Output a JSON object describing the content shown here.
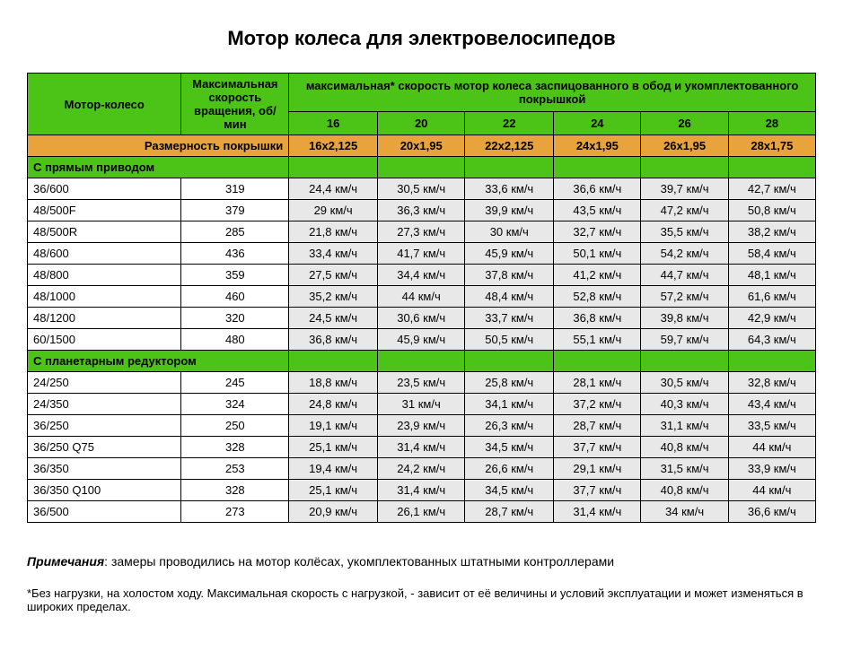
{
  "title": "Мотор колеса для электровелосипедов",
  "header": {
    "motor": "Мотор-колесо",
    "rpm": "Максимальная скорость вращения, об/мин",
    "speed_title": "максимальная* скорость мотор колеса заспицованного в обод и укомплектованного покрышкой",
    "wheel_sizes": [
      "16",
      "20",
      "22",
      "24",
      "26",
      "28"
    ],
    "tire_label": "Размерность покрышки",
    "tire_sizes": [
      "16x2,125",
      "20x1,95",
      "22x2,125",
      "24x1,95",
      "26x1,95",
      "28x1,75"
    ]
  },
  "colors": {
    "green": "#4cc417",
    "orange": "#e8a33d",
    "grey": "#e8e8e8"
  },
  "sections": [
    {
      "name": "С прямым приводом",
      "rows": [
        {
          "model": "36/600",
          "rpm": "319",
          "speeds": [
            "24,4 км/ч",
            "30,5 км/ч",
            "33,6 км/ч",
            "36,6 км/ч",
            "39,7 км/ч",
            "42,7 км/ч"
          ]
        },
        {
          "model": "48/500F",
          "rpm": "379",
          "speeds": [
            "29 км/ч",
            "36,3 км/ч",
            "39,9 км/ч",
            "43,5 км/ч",
            "47,2 км/ч",
            "50,8 км/ч"
          ]
        },
        {
          "model": "48/500R",
          "rpm": "285",
          "speeds": [
            "21,8 км/ч",
            "27,3 км/ч",
            "30 км/ч",
            "32,7 км/ч",
            "35,5 км/ч",
            "38,2 км/ч"
          ]
        },
        {
          "model": "48/600",
          "rpm": "436",
          "speeds": [
            "33,4 км/ч",
            "41,7 км/ч",
            "45,9 км/ч",
            "50,1 км/ч",
            "54,2 км/ч",
            "58,4 км/ч"
          ]
        },
        {
          "model": "48/800",
          "rpm": "359",
          "speeds": [
            "27,5 км/ч",
            "34,4 км/ч",
            "37,8 км/ч",
            "41,2 км/ч",
            "44,7 км/ч",
            "48,1 км/ч"
          ]
        },
        {
          "model": "48/1000",
          "rpm": "460",
          "speeds": [
            "35,2 км/ч",
            "44 км/ч",
            "48,4 км/ч",
            "52,8 км/ч",
            "57,2 км/ч",
            "61,6 км/ч"
          ]
        },
        {
          "model": "48/1200",
          "rpm": "320",
          "speeds": [
            "24,5 км/ч",
            "30,6 км/ч",
            "33,7 км/ч",
            "36,8 км/ч",
            "39,8 км/ч",
            "42,9 км/ч"
          ]
        },
        {
          "model": "60/1500",
          "rpm": "480",
          "speeds": [
            "36,8 км/ч",
            "45,9 км/ч",
            "50,5 км/ч",
            "55,1 км/ч",
            "59,7 км/ч",
            "64,3 км/ч"
          ]
        }
      ]
    },
    {
      "name": "С планетарным редуктором",
      "rows": [
        {
          "model": "24/250",
          "rpm": "245",
          "speeds": [
            "18,8 км/ч",
            "23,5 км/ч",
            "25,8 км/ч",
            "28,1 км/ч",
            "30,5 км/ч",
            "32,8 км/ч"
          ]
        },
        {
          "model": "24/350",
          "rpm": "324",
          "speeds": [
            "24,8 км/ч",
            "31 км/ч",
            "34,1 км/ч",
            "37,2 км/ч",
            "40,3 км/ч",
            "43,4 км/ч"
          ]
        },
        {
          "model": "36/250",
          "rpm": "250",
          "speeds": [
            "19,1 км/ч",
            "23,9 км/ч",
            "26,3 км/ч",
            "28,7 км/ч",
            "31,1 км/ч",
            "33,5 км/ч"
          ]
        },
        {
          "model": "36/250 Q75",
          "rpm": "328",
          "speeds": [
            "25,1 км/ч",
            "31,4 км/ч",
            "34,5 км/ч",
            "37,7 км/ч",
            "40,8 км/ч",
            "44 км/ч"
          ]
        },
        {
          "model": "36/350",
          "rpm": "253",
          "speeds": [
            "19,4 км/ч",
            "24,2 км/ч",
            "26,6 км/ч",
            "29,1 км/ч",
            "31,5 км/ч",
            "33,9 км/ч"
          ]
        },
        {
          "model": "36/350 Q100",
          "rpm": "328",
          "speeds": [
            "25,1 км/ч",
            "31,4 км/ч",
            "34,5 км/ч",
            "37,7 км/ч",
            "40,8 км/ч",
            "44 км/ч"
          ]
        },
        {
          "model": "36/500",
          "rpm": "273",
          "speeds": [
            "20,9 км/ч",
            "26,1 км/ч",
            "28,7 км/ч",
            "31,4 км/ч",
            "34 км/ч",
            "36,6 км/ч"
          ]
        }
      ]
    }
  ],
  "notes": {
    "label": "Примечания",
    "text": ": замеры проводились на мотор колёсах, укомплектованных штатными контроллерами"
  },
  "footnote": "*Без нагрузки, на холостом ходу. Максимальная скорость с нагрузкой, - зависит от её величины и условий эксплуатации и может изменяться в широких пределах."
}
